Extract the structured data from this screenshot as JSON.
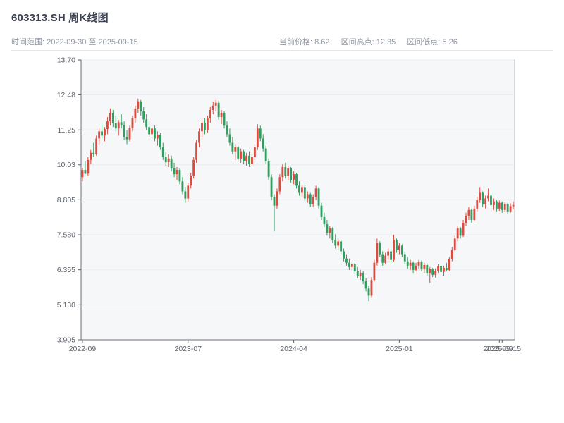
{
  "header": {
    "title": "603313.SH 周K线图",
    "time_range": "时间范围: 2022-09-30 至 2025-09-15",
    "stats": {
      "current": "当前价格: 8.62",
      "high": "区间高点: 12.35",
      "low": "区间低点: 5.26"
    }
  },
  "chart_data": {
    "type": "candlestick",
    "title": "603313.SH 周K线图",
    "period": "weekly",
    "date_range": [
      "2022-09-30",
      "2025-09-15"
    ],
    "current_price": 8.62,
    "range_high": 12.35,
    "range_low": 5.26,
    "up_color": "#dd4b3e",
    "down_color": "#2f9e5e",
    "plot_bg": "#f6f7f9",
    "grid_color": "#eaecf1",
    "y_range": [
      3.905,
      13.7
    ],
    "y_ticks": [
      {
        "value": 13.7,
        "label": "13.70"
      },
      {
        "value": 12.48,
        "label": "12.48"
      },
      {
        "value": 11.25,
        "label": "11.25"
      },
      {
        "value": 10.03,
        "label": "10.03"
      },
      {
        "value": 8.805,
        "label": "8.805"
      },
      {
        "value": 7.58,
        "label": "7.580"
      },
      {
        "value": 6.355,
        "label": "6.355"
      },
      {
        "value": 5.13,
        "label": "5.130"
      },
      {
        "value": 3.905,
        "label": "3.905"
      }
    ],
    "x_ticks": [
      {
        "index": 0,
        "label": "2022-09"
      },
      {
        "index": 38,
        "label": "2023-07"
      },
      {
        "index": 76,
        "label": "2024-04"
      },
      {
        "index": 114,
        "label": "2025-01"
      },
      {
        "index": 150,
        "label": "2025-09"
      },
      {
        "index": 151,
        "label": "2025-09-15"
      }
    ],
    "candles_format": [
      "open",
      "high",
      "low",
      "close"
    ],
    "candles": [
      [
        9.6,
        9.92,
        9.45,
        9.85
      ],
      [
        9.85,
        10.15,
        9.7,
        9.72
      ],
      [
        9.72,
        10.3,
        9.65,
        10.2
      ],
      [
        10.2,
        10.55,
        10.05,
        10.45
      ],
      [
        10.45,
        10.8,
        10.3,
        10.4
      ],
      [
        10.4,
        11.05,
        10.35,
        10.95
      ],
      [
        10.95,
        11.3,
        10.75,
        11.2
      ],
      [
        11.2,
        11.45,
        10.95,
        11.05
      ],
      [
        11.05,
        11.35,
        10.85,
        11.28
      ],
      [
        11.28,
        11.7,
        11.1,
        11.55
      ],
      [
        11.55,
        12.0,
        11.4,
        11.85
      ],
      [
        11.85,
        11.95,
        11.35,
        11.48
      ],
      [
        11.48,
        11.75,
        11.2,
        11.3
      ],
      [
        11.3,
        11.6,
        11.05,
        11.52
      ],
      [
        11.52,
        11.8,
        11.3,
        11.42
      ],
      [
        11.42,
        11.55,
        10.9,
        11.0
      ],
      [
        11.0,
        11.25,
        10.75,
        10.92
      ],
      [
        10.92,
        11.4,
        10.85,
        11.32
      ],
      [
        11.32,
        11.75,
        11.2,
        11.65
      ],
      [
        11.65,
        12.1,
        11.5,
        12.0
      ],
      [
        12.0,
        12.35,
        11.85,
        12.25
      ],
      [
        12.25,
        12.3,
        11.75,
        11.9
      ],
      [
        11.9,
        12.05,
        11.5,
        11.62
      ],
      [
        11.62,
        11.8,
        11.25,
        11.35
      ],
      [
        11.35,
        11.55,
        11.0,
        11.1
      ],
      [
        11.1,
        11.45,
        10.95,
        11.3
      ],
      [
        11.3,
        11.4,
        10.85,
        10.95
      ],
      [
        10.95,
        11.2,
        10.7,
        11.08
      ],
      [
        11.08,
        11.15,
        10.55,
        10.65
      ],
      [
        10.65,
        10.8,
        10.2,
        10.3
      ],
      [
        10.3,
        10.5,
        10.0,
        10.12
      ],
      [
        10.12,
        10.4,
        9.95,
        10.25
      ],
      [
        10.25,
        10.35,
        9.8,
        9.9
      ],
      [
        9.9,
        10.1,
        9.6,
        9.7
      ],
      [
        9.7,
        9.95,
        9.5,
        9.85
      ],
      [
        9.85,
        9.9,
        9.35,
        9.45
      ],
      [
        9.45,
        9.6,
        9.0,
        9.1
      ],
      [
        9.1,
        9.25,
        8.7,
        8.85
      ],
      [
        8.85,
        9.4,
        8.75,
        9.3
      ],
      [
        9.3,
        9.75,
        9.2,
        9.65
      ],
      [
        9.65,
        10.3,
        9.55,
        10.2
      ],
      [
        10.2,
        10.9,
        10.1,
        10.8
      ],
      [
        10.8,
        11.3,
        10.65,
        11.2
      ],
      [
        11.2,
        11.6,
        11.0,
        11.5
      ],
      [
        11.5,
        11.65,
        11.1,
        11.25
      ],
      [
        11.25,
        11.75,
        11.15,
        11.65
      ],
      [
        11.65,
        12.05,
        11.5,
        11.95
      ],
      [
        11.95,
        12.25,
        11.8,
        12.1
      ],
      [
        12.1,
        12.3,
        11.9,
        12.2
      ],
      [
        12.2,
        12.28,
        11.6,
        11.7
      ],
      [
        11.7,
        11.95,
        11.45,
        11.85
      ],
      [
        11.85,
        11.9,
        11.3,
        11.4
      ],
      [
        11.4,
        11.55,
        11.0,
        11.1
      ],
      [
        11.1,
        11.3,
        10.7,
        10.8
      ],
      [
        10.8,
        11.0,
        10.4,
        10.5
      ],
      [
        10.5,
        10.75,
        10.2,
        10.65
      ],
      [
        10.65,
        10.7,
        10.15,
        10.25
      ],
      [
        10.25,
        10.6,
        10.1,
        10.5
      ],
      [
        10.5,
        10.55,
        10.05,
        10.15
      ],
      [
        10.15,
        10.45,
        10.0,
        10.35
      ],
      [
        10.35,
        10.5,
        9.95,
        10.05
      ],
      [
        10.05,
        10.4,
        9.9,
        10.3
      ],
      [
        10.3,
        10.75,
        10.2,
        10.65
      ],
      [
        10.65,
        11.45,
        10.55,
        11.3
      ],
      [
        11.3,
        11.4,
        10.85,
        10.95
      ],
      [
        10.95,
        11.1,
        10.5,
        10.6
      ],
      [
        10.6,
        10.7,
        10.05,
        10.15
      ],
      [
        10.15,
        10.25,
        9.5,
        9.6
      ],
      [
        9.6,
        9.7,
        8.8,
        8.9
      ],
      [
        8.9,
        9.0,
        7.7,
        8.6
      ],
      [
        8.6,
        9.2,
        8.5,
        9.1
      ],
      [
        9.1,
        9.7,
        9.0,
        9.6
      ],
      [
        9.6,
        10.05,
        9.45,
        9.95
      ],
      [
        9.95,
        10.1,
        9.55,
        9.65
      ],
      [
        9.65,
        10.0,
        9.5,
        9.9
      ],
      [
        9.9,
        9.95,
        9.4,
        9.5
      ],
      [
        9.5,
        9.8,
        9.35,
        9.7
      ],
      [
        9.7,
        9.75,
        9.2,
        9.3
      ],
      [
        9.3,
        9.45,
        8.95,
        9.05
      ],
      [
        9.05,
        9.35,
        8.9,
        9.25
      ],
      [
        9.25,
        9.3,
        8.75,
        8.85
      ],
      [
        8.85,
        9.1,
        8.7,
        9.0
      ],
      [
        9.0,
        9.05,
        8.55,
        8.65
      ],
      [
        8.65,
        9.0,
        8.55,
        8.9
      ],
      [
        8.9,
        9.3,
        8.8,
        9.2
      ],
      [
        9.2,
        9.25,
        8.5,
        8.6
      ],
      [
        8.6,
        8.7,
        8.1,
        8.2
      ],
      [
        8.2,
        8.35,
        7.85,
        7.95
      ],
      [
        7.95,
        8.1,
        7.55,
        7.65
      ],
      [
        7.65,
        7.9,
        7.45,
        7.8
      ],
      [
        7.8,
        7.85,
        7.3,
        7.4
      ],
      [
        7.4,
        7.6,
        7.1,
        7.2
      ],
      [
        7.2,
        7.45,
        7.05,
        7.35
      ],
      [
        7.35,
        7.4,
        6.9,
        7.0
      ],
      [
        7.0,
        7.1,
        6.65,
        6.75
      ],
      [
        6.75,
        6.9,
        6.5,
        6.6
      ],
      [
        6.6,
        6.75,
        6.35,
        6.45
      ],
      [
        6.45,
        6.65,
        6.3,
        6.55
      ],
      [
        6.55,
        6.6,
        6.2,
        6.3
      ],
      [
        6.3,
        6.45,
        6.05,
        6.15
      ],
      [
        6.15,
        6.35,
        6.0,
        6.25
      ],
      [
        6.25,
        6.3,
        5.85,
        5.95
      ],
      [
        5.95,
        6.05,
        5.6,
        5.7
      ],
      [
        5.7,
        5.8,
        5.26,
        5.45
      ],
      [
        5.45,
        6.1,
        5.4,
        6.0
      ],
      [
        6.0,
        6.7,
        5.95,
        6.6
      ],
      [
        6.6,
        7.45,
        6.5,
        7.3
      ],
      [
        7.3,
        7.35,
        6.8,
        6.9
      ],
      [
        6.9,
        7.0,
        6.5,
        6.6
      ],
      [
        6.6,
        6.95,
        6.55,
        6.85
      ],
      [
        6.85,
        7.1,
        6.7,
        7.0
      ],
      [
        7.0,
        7.05,
        6.6,
        6.7
      ],
      [
        6.7,
        7.58,
        6.65,
        7.4
      ],
      [
        7.4,
        7.45,
        6.95,
        7.05
      ],
      [
        7.05,
        7.3,
        6.9,
        7.2
      ],
      [
        7.2,
        7.25,
        6.8,
        6.9
      ],
      [
        6.9,
        7.0,
        6.55,
        6.65
      ],
      [
        6.65,
        6.8,
        6.4,
        6.5
      ],
      [
        6.5,
        6.7,
        6.35,
        6.6
      ],
      [
        6.6,
        6.65,
        6.25,
        6.35
      ],
      [
        6.35,
        6.6,
        6.3,
        6.5
      ],
      [
        6.5,
        6.7,
        6.4,
        6.62
      ],
      [
        6.62,
        6.68,
        6.3,
        6.4
      ],
      [
        6.4,
        6.6,
        6.25,
        6.52
      ],
      [
        6.52,
        6.58,
        6.15,
        6.25
      ],
      [
        6.25,
        6.45,
        5.9,
        6.38
      ],
      [
        6.38,
        6.42,
        6.1,
        6.18
      ],
      [
        6.18,
        6.4,
        6.08,
        6.32
      ],
      [
        6.32,
        6.55,
        6.25,
        6.48
      ],
      [
        6.48,
        6.52,
        6.2,
        6.28
      ],
      [
        6.28,
        6.5,
        6.15,
        6.42
      ],
      [
        6.42,
        6.6,
        6.3,
        6.35
      ],
      [
        6.35,
        6.8,
        6.3,
        6.72
      ],
      [
        6.72,
        7.15,
        6.65,
        7.05
      ],
      [
        7.05,
        7.55,
        7.0,
        7.45
      ],
      [
        7.45,
        7.9,
        7.35,
        7.8
      ],
      [
        7.8,
        7.85,
        7.45,
        7.55
      ],
      [
        7.55,
        8.1,
        7.5,
        8.0
      ],
      [
        8.0,
        8.35,
        7.9,
        8.25
      ],
      [
        8.25,
        8.55,
        8.1,
        8.45
      ],
      [
        8.45,
        8.5,
        8.0,
        8.1
      ],
      [
        8.1,
        8.6,
        8.05,
        8.5
      ],
      [
        8.5,
        8.9,
        8.4,
        8.8
      ],
      [
        8.8,
        9.25,
        8.7,
        9.05
      ],
      [
        9.05,
        9.1,
        8.55,
        8.65
      ],
      [
        8.65,
        8.95,
        8.5,
        8.85
      ],
      [
        8.85,
        9.2,
        8.75,
        8.95
      ],
      [
        8.95,
        9.0,
        8.55,
        8.62
      ],
      [
        8.62,
        8.85,
        8.45,
        8.75
      ],
      [
        8.75,
        8.8,
        8.4,
        8.5
      ],
      [
        8.5,
        8.78,
        8.42,
        8.7
      ],
      [
        8.7,
        8.75,
        8.35,
        8.45
      ],
      [
        8.45,
        8.72,
        8.38,
        8.65
      ],
      [
        8.65,
        8.7,
        8.3,
        8.4
      ],
      [
        8.4,
        8.68,
        8.35,
        8.58
      ],
      [
        8.58,
        8.75,
        8.48,
        8.62
      ]
    ]
  }
}
